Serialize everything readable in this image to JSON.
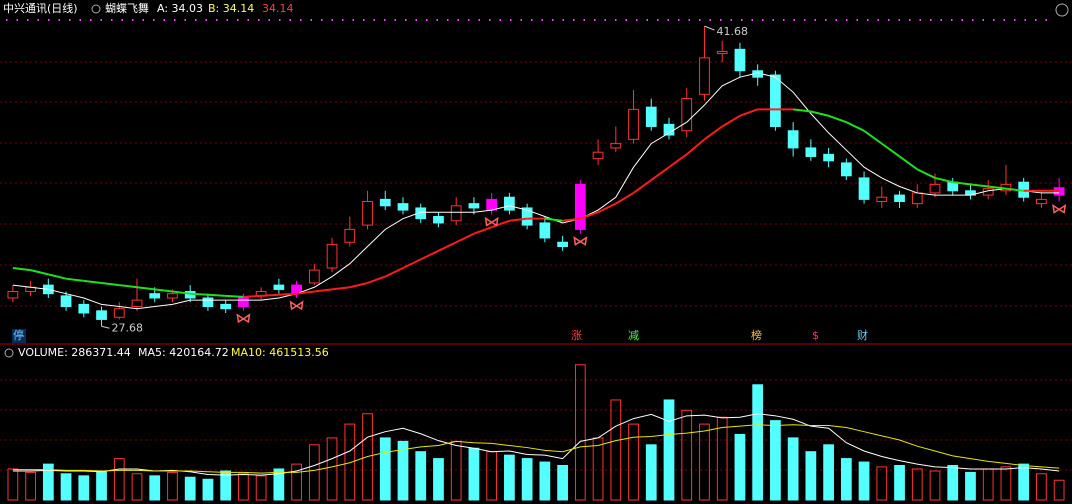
{
  "header": {
    "symbol": "中兴通讯(日线)",
    "indicator": "蝴蝶飞舞",
    "a": "A: 34.03",
    "b": "B: 34.14",
    "c": "34.14",
    "volume": "VOLUME: 286371.44",
    "ma5": "MA5: 420164.72",
    "ma10": "MA10: 461513.56"
  },
  "markers": [
    "停",
    "涨",
    "减",
    "榜",
    "$",
    "财"
  ],
  "chart_data": [
    {
      "type": "candlestick",
      "up_color": "#ff3232",
      "down_color": "#54ffff",
      "highlight_color": "#ff00ff",
      "highlight": [
        13,
        16,
        27,
        32,
        59
      ],
      "ylim": [
        26.9,
        42.2
      ],
      "open": [
        29.0,
        29.3,
        29.6,
        29.1,
        28.7,
        28.4,
        28.1,
        28.6,
        29.2,
        29.0,
        29.3,
        29.0,
        28.7,
        28.6,
        29.1,
        29.6,
        29.2,
        29.7,
        30.4,
        31.6,
        32.4,
        33.6,
        33.4,
        33.2,
        32.8,
        32.6,
        33.4,
        33.1,
        33.7,
        33.2,
        32.5,
        31.6,
        32.2,
        35.5,
        36.0,
        36.4,
        37.9,
        37.1,
        36.8,
        38.5,
        40.4,
        40.6,
        39.6,
        39.4,
        36.8,
        36.0,
        35.7,
        35.3,
        34.6,
        33.5,
        33.8,
        33.4,
        33.9,
        34.4,
        34.0,
        33.8,
        34.0,
        34.4,
        33.4,
        33.8
      ],
      "high": [
        29.6,
        29.8,
        29.9,
        29.3,
        28.9,
        28.6,
        28.8,
        29.9,
        29.5,
        29.4,
        29.6,
        29.2,
        28.9,
        29.2,
        29.5,
        29.9,
        29.8,
        30.6,
        31.8,
        32.8,
        34.0,
        34.0,
        33.7,
        33.4,
        33.0,
        33.7,
        33.7,
        33.9,
        33.9,
        33.4,
        32.8,
        31.9,
        34.5,
        36.4,
        37.0,
        38.7,
        38.3,
        37.4,
        38.8,
        41.68,
        41.0,
        40.9,
        39.9,
        39.6,
        37.2,
        36.4,
        36.0,
        35.5,
        34.9,
        34.2,
        34.0,
        34.3,
        34.8,
        34.6,
        34.3,
        34.5,
        35.2,
        34.6,
        34.0,
        34.6
      ],
      "low": [
        28.8,
        29.1,
        29.0,
        28.4,
        28.1,
        27.68,
        28.0,
        28.4,
        28.8,
        28.8,
        28.8,
        28.4,
        28.3,
        28.4,
        28.9,
        29.2,
        29.0,
        29.6,
        30.2,
        31.4,
        32.2,
        33.1,
        32.9,
        32.5,
        32.3,
        32.4,
        32.9,
        32.9,
        32.9,
        32.2,
        31.6,
        31.2,
        32.0,
        35.2,
        35.8,
        36.2,
        36.8,
        36.4,
        36.5,
        38.2,
        40.0,
        39.3,
        38.9,
        36.8,
        35.6,
        35.4,
        35.1,
        34.5,
        33.4,
        33.2,
        33.2,
        33.2,
        33.7,
        33.8,
        33.6,
        33.6,
        33.8,
        33.5,
        33.2,
        33.5
      ],
      "close": [
        29.3,
        29.5,
        29.2,
        28.6,
        28.3,
        28.0,
        28.5,
        28.9,
        29.0,
        29.2,
        29.0,
        28.6,
        28.5,
        29.0,
        29.3,
        29.4,
        29.6,
        30.3,
        31.5,
        32.2,
        33.5,
        33.3,
        33.1,
        32.7,
        32.5,
        33.3,
        33.2,
        33.6,
        33.1,
        32.4,
        31.8,
        31.4,
        34.3,
        35.8,
        36.2,
        37.8,
        37.0,
        36.6,
        38.3,
        40.2,
        40.5,
        39.6,
        39.3,
        37.0,
        36.0,
        35.6,
        35.4,
        34.7,
        33.6,
        33.7,
        33.5,
        33.9,
        34.3,
        34.0,
        33.8,
        34.1,
        34.3,
        33.7,
        33.6,
        34.14
      ],
      "series": [
        {
          "color": "#ffffff",
          "values": [
            29.6,
            29.5,
            29.4,
            29.2,
            29.0,
            28.7,
            28.6,
            28.5,
            28.6,
            28.7,
            28.9,
            28.9,
            28.9,
            28.9,
            28.9,
            29.0,
            29.2,
            29.5,
            30.0,
            30.6,
            31.4,
            32.2,
            32.7,
            33.0,
            33.0,
            33.0,
            33.0,
            33.1,
            33.3,
            33.1,
            32.8,
            32.5,
            32.7,
            33.1,
            33.7,
            35.1,
            36.2,
            36.7,
            37.2,
            38.0,
            38.9,
            39.3,
            39.5,
            39.3,
            38.6,
            37.6,
            36.7,
            35.9,
            35.1,
            34.6,
            34.2,
            33.9,
            33.8,
            33.8,
            33.8,
            34.0,
            34.1,
            34.0,
            33.9,
            33.9
          ]
        },
        {
          "rise_color": "#ff1a1a",
          "fall_color": "#1ee01e",
          "values": [
            30.4,
            30.3,
            30.1,
            29.9,
            29.8,
            29.7,
            29.6,
            29.5,
            29.4,
            29.3,
            29.2,
            29.15,
            29.1,
            29.05,
            29.1,
            29.15,
            29.2,
            29.3,
            29.4,
            29.5,
            29.7,
            30.0,
            30.4,
            30.8,
            31.2,
            31.6,
            32.0,
            32.3,
            32.6,
            32.7,
            32.7,
            32.6,
            32.7,
            33.0,
            33.4,
            33.9,
            34.5,
            35.1,
            35.7,
            36.4,
            37.0,
            37.5,
            37.8,
            37.8,
            37.8,
            37.7,
            37.5,
            37.2,
            36.8,
            36.2,
            35.6,
            35.0,
            34.6,
            34.4,
            34.3,
            34.2,
            34.1,
            34.0,
            34.0,
            34.0
          ]
        }
      ]
    },
    {
      "type": "bar",
      "ylim": [
        0,
        2000000
      ],
      "values": [
        450000,
        400000,
        520000,
        380000,
        350000,
        420000,
        600000,
        380000,
        350000,
        400000,
        330000,
        300000,
        420000,
        380000,
        350000,
        450000,
        520000,
        800000,
        900000,
        1100000,
        1250000,
        900000,
        850000,
        700000,
        600000,
        850000,
        750000,
        700000,
        650000,
        600000,
        550000,
        500000,
        1960000,
        900000,
        1450000,
        1100000,
        800000,
        1450000,
        1300000,
        1100000,
        1200000,
        950000,
        1670000,
        1150000,
        900000,
        700000,
        800000,
        600000,
        550000,
        480000,
        500000,
        450000,
        420000,
        500000,
        400000,
        450000,
        480000,
        520000,
        380000,
        286371.44
      ],
      "series": [
        {
          "color": "#ffffff",
          "values": [
            420000,
            420000,
            430000,
            420000,
            420000,
            410000,
            450000,
            450000,
            420000,
            430000,
            410000,
            370000,
            360000,
            370000,
            360000,
            380000,
            420000,
            500000,
            600000,
            710000,
            910000,
            990000,
            1040000,
            960000,
            860000,
            790000,
            750000,
            700000,
            710000,
            660000,
            650000,
            600000,
            850000,
            900000,
            1070000,
            1180000,
            1240000,
            1140000,
            1220000,
            1230000,
            1190000,
            1200000,
            1250000,
            1220000,
            1170000,
            1070000,
            1040000,
            830000,
            710000,
            630000,
            570000,
            520000,
            480000,
            470000,
            450000,
            450000,
            450000,
            470000,
            450000,
            420164.72
          ]
        },
        {
          "color": "#e8e800",
          "values": [
            440000,
            440000,
            440000,
            430000,
            430000,
            420000,
            430000,
            430000,
            420000,
            420000,
            420000,
            410000,
            400000,
            400000,
            390000,
            400000,
            400000,
            430000,
            480000,
            540000,
            630000,
            690000,
            730000,
            770000,
            790000,
            850000,
            830000,
            820000,
            790000,
            760000,
            720000,
            700000,
            770000,
            790000,
            860000,
            910000,
            920000,
            950000,
            970000,
            1000000,
            1050000,
            1070000,
            1090000,
            1080000,
            1090000,
            1080000,
            1080000,
            1050000,
            990000,
            930000,
            870000,
            780000,
            710000,
            640000,
            600000,
            560000,
            530000,
            500000,
            480000,
            461513.56
          ]
        }
      ]
    }
  ]
}
